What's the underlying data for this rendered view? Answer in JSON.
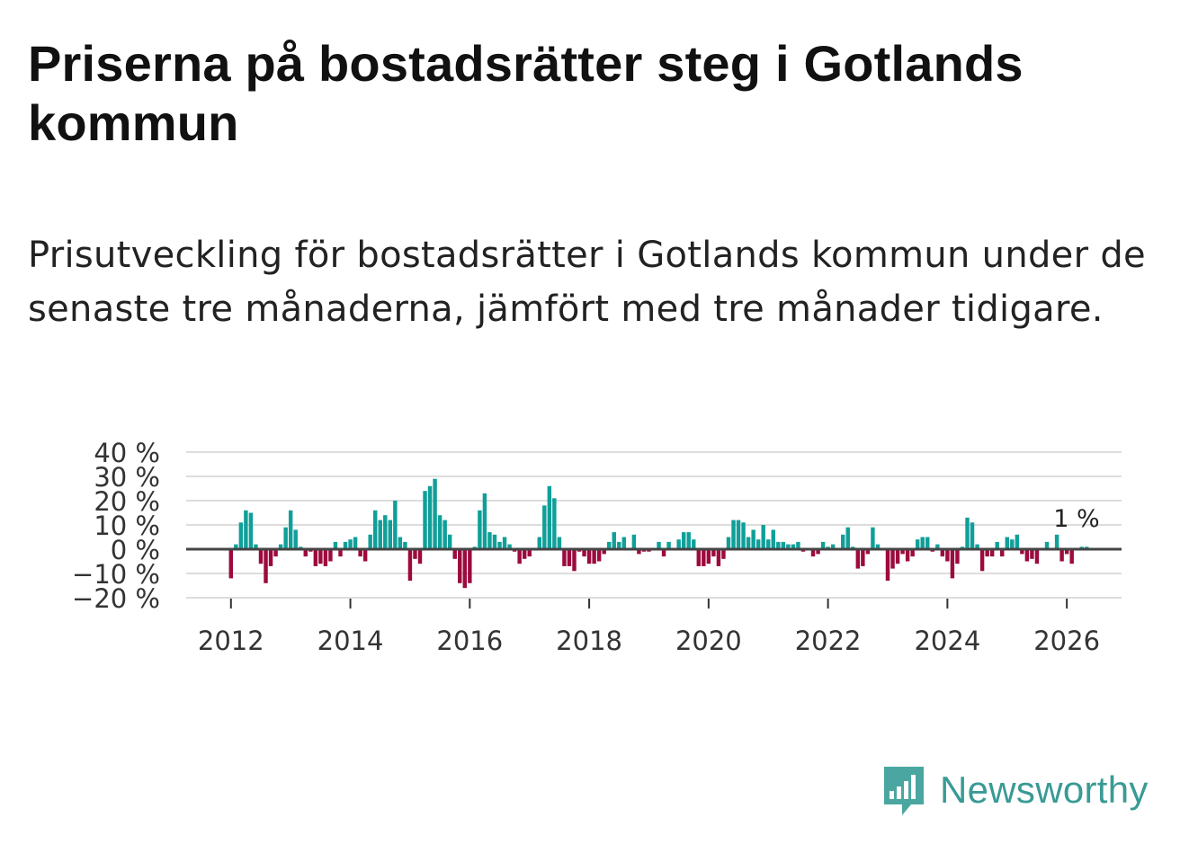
{
  "title": "Priserna på bostadsrätter steg i Gotlands kommun",
  "subtitle": "Prisutveckling för bostadsrätter i Gotlands kommun under de senaste tre månaderna, jämfört med tre månader tidigare.",
  "brand": "Newsworthy",
  "colors": {
    "positive": "#109f99",
    "negative": "#9c0a3e",
    "zero_line": "#444444",
    "grid": "#dddddd",
    "brand": "#3a9a96"
  },
  "chart_data": {
    "type": "bar",
    "title": "",
    "xlabel": "",
    "ylabel": "",
    "ylim": [
      -20,
      40
    ],
    "y_ticks": [
      40,
      30,
      20,
      10,
      0,
      -10,
      -20
    ],
    "y_tick_labels": [
      "40 %",
      "30 %",
      "20 %",
      "10 %",
      "0 %",
      "−10 %",
      "−20 %"
    ],
    "x_tick_labels": [
      "2012",
      "2014",
      "2016",
      "2018",
      "2020",
      "2022",
      "2024",
      "2026"
    ],
    "x_range": [
      "2011-04",
      "2026-12"
    ],
    "start_month": "2012-01",
    "annotation": "1 %",
    "values": [
      -12,
      2,
      11,
      16,
      15,
      2,
      -6,
      -14,
      -7,
      -3,
      2,
      9,
      16,
      8,
      1,
      -3,
      -1,
      -7,
      -6,
      -7,
      -5,
      3,
      -3,
      3,
      4,
      5,
      -3,
      -5,
      6,
      16,
      12,
      14,
      12,
      20,
      5,
      3,
      -13,
      -4,
      -6,
      24,
      26,
      29,
      14,
      12,
      6,
      -4,
      -14,
      -16,
      -14,
      1,
      16,
      23,
      7,
      6,
      3,
      5,
      2,
      -1,
      -6,
      -4,
      -3,
      0,
      5,
      18,
      26,
      21,
      5,
      -7,
      -7,
      -9,
      -1,
      -3,
      -6,
      -6,
      -5,
      -2,
      3,
      7,
      3,
      5,
      0,
      6,
      -2,
      -1,
      -1,
      0,
      3,
      -3,
      3,
      0,
      4,
      7,
      7,
      4,
      -7,
      -7,
      -6,
      -3,
      -7,
      -4,
      5,
      12,
      12,
      11,
      5,
      8,
      4,
      10,
      4,
      8,
      3,
      3,
      2,
      2,
      3,
      -1,
      0,
      -3,
      -2,
      3,
      1,
      2,
      0,
      6,
      9,
      1,
      -8,
      -7,
      -2,
      9,
      2,
      0,
      -13,
      -8,
      -6,
      -2,
      -5,
      -3,
      4,
      5,
      5,
      -1,
      2,
      -3,
      -5,
      -12,
      -6,
      1,
      13,
      11,
      2,
      -9,
      -3,
      -3,
      3,
      -3,
      5,
      4,
      6,
      -2,
      -5,
      -4,
      -6,
      0,
      3,
      0,
      6,
      -5,
      -2,
      -6,
      0,
      1,
      1
    ]
  }
}
